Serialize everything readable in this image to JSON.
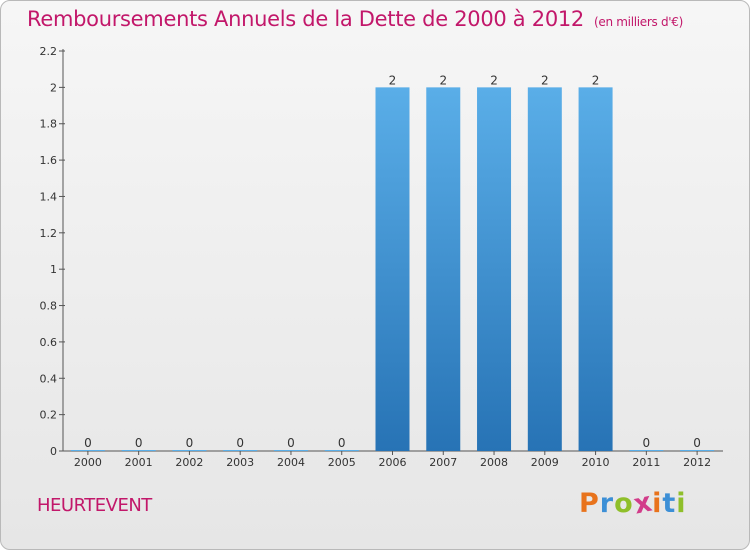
{
  "chart_data": {
    "type": "bar",
    "title": "Remboursements Annuels de la Dette de 2000 à 2012",
    "unit_label": "(en milliers d'€)",
    "categories": [
      "2000",
      "2001",
      "2002",
      "2003",
      "2004",
      "2005",
      "2006",
      "2007",
      "2008",
      "2009",
      "2010",
      "2011",
      "2012"
    ],
    "values": [
      0,
      0,
      0,
      0,
      0,
      0,
      2,
      2,
      2,
      2,
      2,
      0,
      0
    ],
    "value_labels": [
      "0",
      "0",
      "0",
      "0",
      "0",
      "0",
      "2",
      "2",
      "2",
      "2",
      "2",
      "0",
      "0"
    ],
    "yticks": [
      "0",
      "0.2",
      "0.4",
      "0.6",
      "0.8",
      "1",
      "1.2",
      "1.4",
      "1.6",
      "1.8",
      "2",
      "2.2"
    ],
    "ylim": [
      0,
      2.2
    ],
    "grid": false,
    "bar_color_top": "#5aaee8",
    "bar_color_bottom": "#2773b5"
  },
  "commune": "HEURTEVENT",
  "logo": {
    "letters": [
      "P",
      "r",
      "o",
      "x",
      "i",
      "t",
      "i"
    ],
    "colors": [
      "#e8731c",
      "#3c8fd6",
      "#8fbf2a",
      "#d23c8a",
      "#e8731c",
      "#3c8fd6",
      "#8fbf2a"
    ]
  }
}
